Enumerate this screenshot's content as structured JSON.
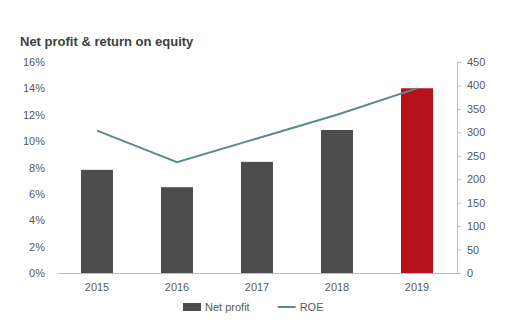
{
  "chart_data": {
    "type": "bar",
    "title": "Net profit & return on equity",
    "categories": [
      "2015",
      "2016",
      "2017",
      "2018",
      "2019"
    ],
    "series": [
      {
        "name": "Net profit",
        "type": "bar",
        "axis": "y2",
        "colors": [
          "#4d4d4d",
          "#4d4d4d",
          "#4d4d4d",
          "#4d4d4d",
          "#b5121b"
        ],
        "values": [
          220,
          183,
          237,
          305,
          394
        ]
      },
      {
        "name": "ROE",
        "type": "line",
        "color": "#5f8a8c",
        "values": [
          10.8,
          8.4,
          10.2,
          12.0,
          14.0
        ]
      }
    ],
    "ylim": [
      0,
      16
    ],
    "yticks": [
      {
        "value": 0,
        "label": "0%"
      },
      {
        "value": 2,
        "label": "2%"
      },
      {
        "value": 4,
        "label": "4%"
      },
      {
        "value": 6,
        "label": "6%"
      },
      {
        "value": 8,
        "label": "8%"
      },
      {
        "value": 10,
        "label": "10%"
      },
      {
        "value": 12,
        "label": "12%"
      },
      {
        "value": 14,
        "label": "14%"
      },
      {
        "value": 16,
        "label": "16%"
      }
    ],
    "y2lim": [
      0,
      450
    ],
    "y2ticks": [
      0,
      50,
      100,
      150,
      200,
      250,
      300,
      350,
      400,
      450
    ],
    "grid": false,
    "legend": "bottom"
  }
}
